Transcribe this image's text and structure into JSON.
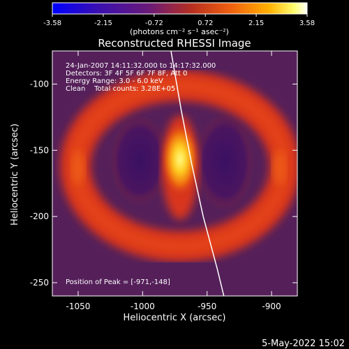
{
  "colorbar": {
    "ticks": [
      "-3.58",
      "-2.15",
      "-0.72",
      "0.72",
      "2.15",
      "3.58"
    ],
    "tick_values": [
      -3.58,
      -2.15,
      -0.72,
      0.72,
      2.15,
      3.58
    ],
    "range": [
      -3.58,
      3.58
    ],
    "unit_label": "(photons cm⁻² s⁻¹ asec⁻²)",
    "colormap": [
      "#0000ff",
      "#4a0aa0",
      "#7a1f6a",
      "#c23a1e",
      "#f06010",
      "#ffb000",
      "#ffff80",
      "#ffffff"
    ]
  },
  "plot": {
    "title": "Reconstructed RHESSI Image",
    "xlabel": "Heliocentric X (arcsec)",
    "ylabel": "Heliocentric Y (arcsec)",
    "x_ticks": [
      "-1050",
      "-1000",
      "-950",
      "-900"
    ],
    "x_tick_values": [
      -1050,
      -1000,
      -950,
      -900
    ],
    "y_ticks": [
      "-100",
      "-150",
      "-200",
      "-250"
    ],
    "y_tick_values": [
      -100,
      -150,
      -200,
      -250
    ],
    "xlim": [
      -1070,
      -880
    ],
    "ylim": [
      -260,
      -75
    ],
    "annotations": {
      "time_range": "24-Jan-2007 14:11:32.000 to 14:17:32.000",
      "detectors": "Detectors: 3F 4F 5F 6F 7F 8F, Att 0",
      "energy": "Energy Range: 3.0 - 6.0 keV",
      "clean": "Clean    Total counts: 3.28E+05",
      "peak": "Position of Peak = [-971,-148]"
    },
    "limb_points": [
      [
        -978,
        -75
      ],
      [
        -970,
        -120
      ],
      [
        -962,
        -160
      ],
      [
        -953,
        -200
      ],
      [
        -942,
        -240
      ],
      [
        -937,
        -260
      ]
    ]
  },
  "footer": {
    "date": "5-May-2022 15:02"
  },
  "colors": {
    "background": "#000000",
    "foreground": "#ffffff",
    "map_background": "#55205a",
    "ring": "#d8361e",
    "cavity": "#3c1262",
    "peak": "#ffef40"
  }
}
